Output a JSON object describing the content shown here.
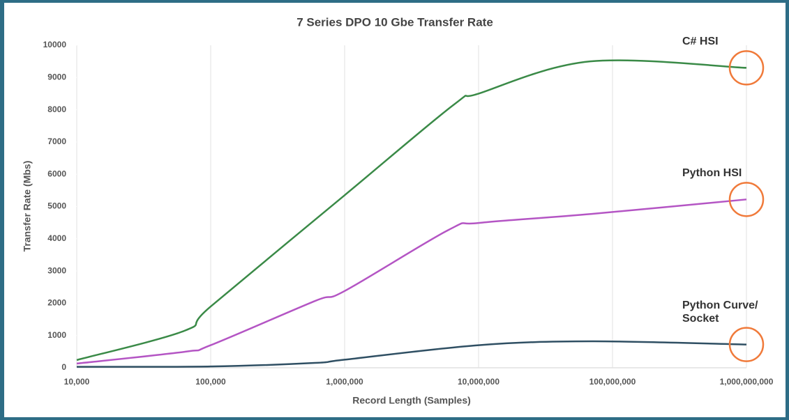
{
  "chart_data": {
    "type": "line",
    "title": "7 Series DPO  10 Gbe Transfer Rate",
    "x_label": "Record Length  (Samples)",
    "y_label": "Transfer Rate  (Mbs)",
    "x_scale": "log",
    "grid": "x",
    "xlim": [
      10000,
      1000000000
    ],
    "xticks": [
      {
        "value": 10000,
        "label": "10,000"
      },
      {
        "value": 100000,
        "label": "100,000"
      },
      {
        "value": 1000000,
        "label": "1,000,000"
      },
      {
        "value": 10000000,
        "label": "10,000,000"
      },
      {
        "value": 100000000,
        "label": "100,000,000"
      },
      {
        "value": 1000000000,
        "label": "1,000,000,000"
      }
    ],
    "ylim": [
      0,
      10000
    ],
    "yticks": [
      0,
      1000,
      2000,
      3000,
      4000,
      5000,
      6000,
      7000,
      8000,
      9000,
      10000
    ],
    "series": [
      {
        "name": "C# HSI",
        "color": "#3a8a47",
        "x": [
          10000,
          64000,
          100000,
          1000000,
          6500000,
          10000000,
          68000000,
          1000000000
        ],
        "values": [
          240,
          1150,
          1900,
          5350,
          8150,
          8500,
          9500,
          9300
        ]
      },
      {
        "name": "Python HSI",
        "color": "#b455c4",
        "x": [
          10000,
          65000,
          100000,
          600000,
          1000000,
          6000000,
          10000000,
          70000000,
          1000000000
        ],
        "values": [
          130,
          500,
          700,
          2070,
          2380,
          4280,
          4490,
          4770,
          5220
        ]
      },
      {
        "name": "Python Curve/ Socket",
        "color": "#2f4f63",
        "x": [
          10000,
          100000,
          600000,
          1000000,
          10000000,
          70000000,
          1000000000
        ],
        "values": [
          30,
          40,
          150,
          250,
          700,
          820,
          720
        ]
      }
    ],
    "highlight_color": "#f07a3a"
  }
}
